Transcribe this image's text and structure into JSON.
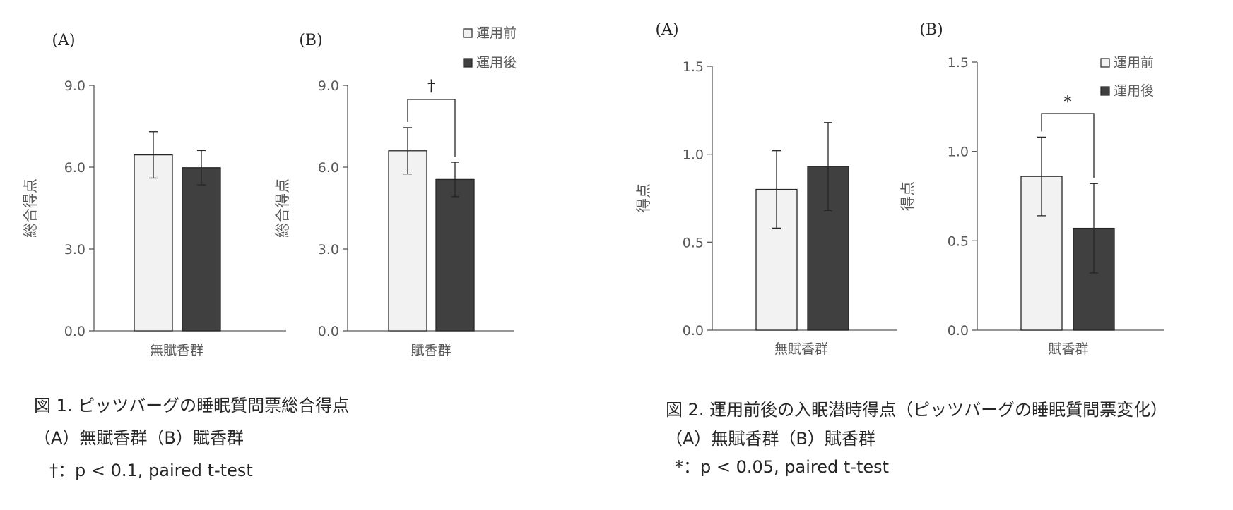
{
  "colors": {
    "before": "#f2f2f2",
    "after": "#404040",
    "axis": "#595959",
    "text": "#262626"
  },
  "chart_data": [
    {
      "type": "bar",
      "panel_label": "(A)",
      "categories": [
        "無賦香群"
      ],
      "ylabel": "総合得点",
      "ylim": [
        0,
        9
      ],
      "yticks": [
        "0.0",
        "3.0",
        "6.0",
        "9.0"
      ],
      "series": [
        {
          "name": "運用前",
          "values": [
            6.45
          ],
          "error": [
            0.85
          ]
        },
        {
          "name": "運用後",
          "values": [
            5.98
          ],
          "error": [
            0.63
          ]
        }
      ],
      "legend": false
    },
    {
      "type": "bar",
      "panel_label": "(B)",
      "categories": [
        "賦香群"
      ],
      "ylabel": "総合得点",
      "ylim": [
        0,
        9
      ],
      "yticks": [
        "0.0",
        "3.0",
        "6.0",
        "9.0"
      ],
      "series": [
        {
          "name": "運用前",
          "values": [
            6.6
          ],
          "error": [
            0.85
          ]
        },
        {
          "name": "運用後",
          "values": [
            5.55
          ],
          "error": [
            0.63
          ]
        }
      ],
      "significance": "†",
      "legend": true,
      "legend_position": "top-right"
    },
    {
      "type": "bar",
      "panel_label": "(A)",
      "categories": [
        "無賦香群"
      ],
      "ylabel": "得点",
      "ylim": [
        0,
        1.5
      ],
      "yticks": [
        "0.0",
        "0.5",
        "1.0",
        "1.5"
      ],
      "series": [
        {
          "name": "運用前",
          "values": [
            0.8
          ],
          "error": [
            0.22
          ]
        },
        {
          "name": "運用後",
          "values": [
            0.93
          ],
          "error": [
            0.25
          ]
        }
      ],
      "legend": false
    },
    {
      "type": "bar",
      "panel_label": "(B)",
      "categories": [
        "賦香群"
      ],
      "ylabel": "得点",
      "ylim": [
        0,
        1.5
      ],
      "yticks": [
        "0.0",
        "0.5",
        "1.0",
        "1.5"
      ],
      "series": [
        {
          "name": "運用前",
          "values": [
            0.86
          ],
          "error": [
            0.22
          ]
        },
        {
          "name": "運用後",
          "values": [
            0.57
          ],
          "error": [
            0.25
          ]
        }
      ],
      "significance": "*",
      "legend": true,
      "legend_position": "top-right"
    }
  ],
  "captions": {
    "fig1": {
      "line1": "図 1.  ピッツバーグの睡眠質問票総合得点",
      "line2": "（A）無賦香群（B）賦香群",
      "line3": "†：p < 0.1, paired t-test"
    },
    "fig2": {
      "line1": "図 2. 運用前後の入眠潜時得点（ピッツバーグの睡眠質問票変化）",
      "line2": "（A）無賦香群（B）賦香群",
      "line3": "*：p < 0.05, paired t-test"
    }
  }
}
